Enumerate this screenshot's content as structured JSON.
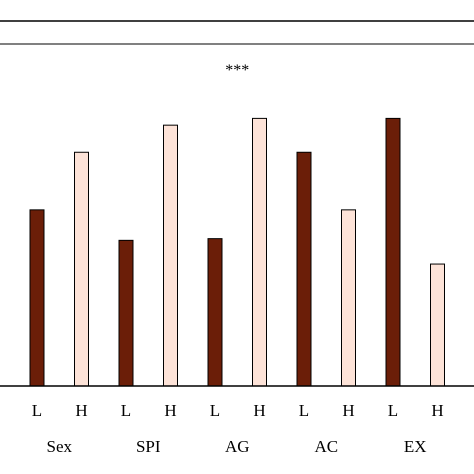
{
  "chart_data": {
    "type": "bar",
    "title": "",
    "xlabel": "",
    "ylabel": "",
    "ylim": [
      0,
      100
    ],
    "grid": false,
    "legend": "none",
    "groups": [
      "Sex",
      "SPI",
      "AG",
      "AC",
      "EX"
    ],
    "bar_labels": [
      "L",
      "H"
    ],
    "series": [
      {
        "values": [
          52,
          43,
          43.5,
          69,
          79
        ],
        "color": "#6b1e08"
      },
      {
        "values": [
          69,
          77,
          79,
          52,
          36
        ],
        "color": "#fde3d8"
      }
    ],
    "annotations": [
      {
        "text": "***",
        "group": "AG"
      }
    ]
  }
}
